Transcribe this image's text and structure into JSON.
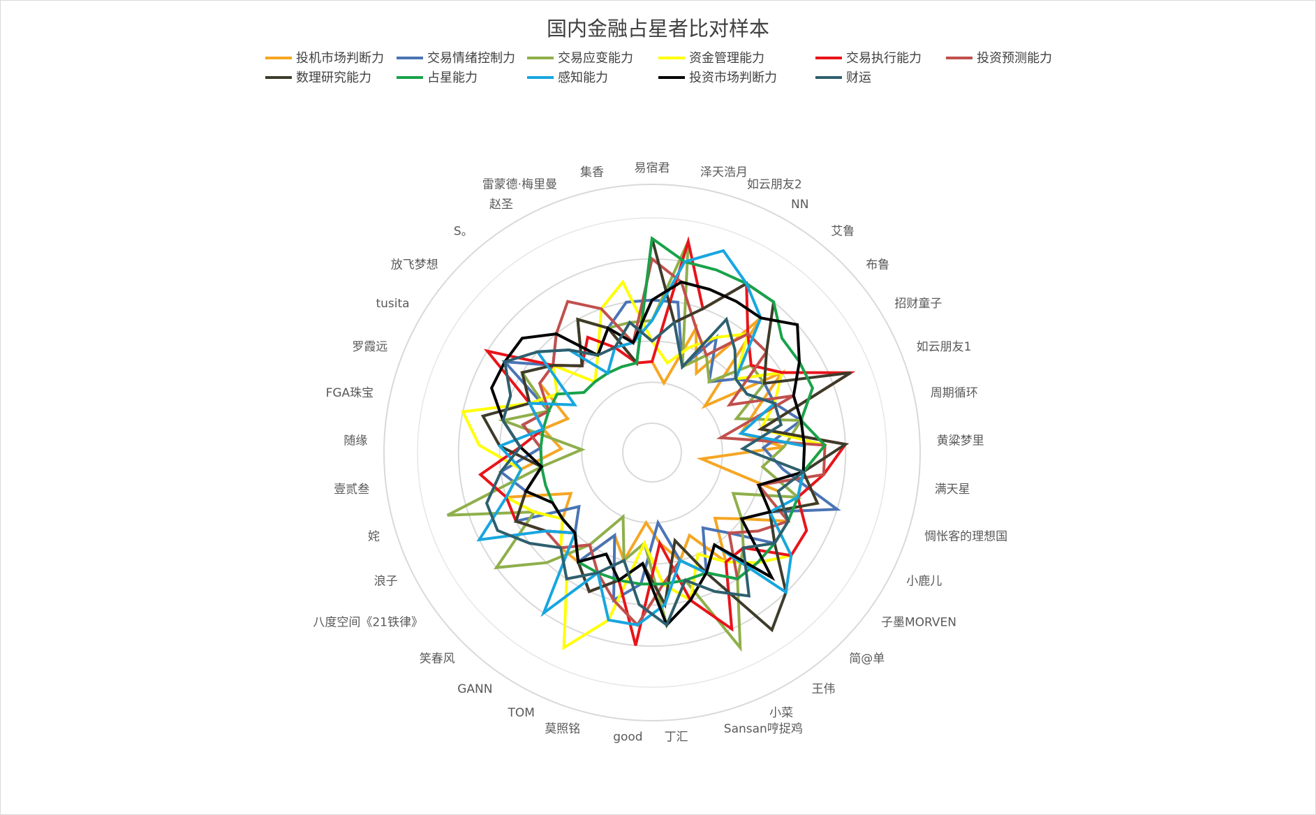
{
  "chart_data": {
    "type": "radar",
    "title": "国内金融占星者比对样本",
    "legend_position": "top",
    "rlim": [
      0,
      10
    ],
    "grid": true,
    "categories": [
      "易宿君",
      "泽天浩月",
      "如云朋友2",
      "NN",
      "艾鲁",
      "布鲁",
      "招财童子",
      "如云朋友1",
      "周期循环",
      "黄粱梦里",
      "满天星",
      "惆怅客的理想国",
      "小鹿儿",
      "子墨MORVEN",
      "简@单",
      "王伟",
      "小菜",
      "Sansan哼捉鸡",
      "丁汇",
      "good",
      "莫照铭",
      "TOM",
      "GANN",
      "笑春风",
      "八度空间《21铁律》",
      "浪子",
      "姹",
      "壹贰叁",
      "随缘",
      "FGA珠宝",
      "罗霞远",
      "tusita",
      "放飞梦想",
      "S。",
      "赵圣",
      "雷蒙德·梅里曼",
      "集香"
    ],
    "series": [
      {
        "name": "投机市场判断力",
        "color": "#f5a623",
        "values": [
          3,
          2,
          5,
          3,
          7,
          2,
          6,
          4,
          3,
          5,
          1,
          5,
          6,
          4,
          3,
          5,
          3,
          4,
          3,
          2,
          4,
          3,
          5,
          5,
          4,
          3,
          6,
          5,
          3,
          4,
          3,
          5,
          5,
          4,
          6,
          5,
          3
        ]
      },
      {
        "name": "交易情绪控制力",
        "color": "#4a74b5",
        "values": [
          6,
          6,
          3,
          5,
          3,
          4,
          5,
          5,
          6,
          4,
          5,
          8,
          5,
          6,
          4,
          3,
          5,
          4,
          2,
          5,
          6,
          3,
          5,
          4,
          3,
          6,
          5,
          6,
          4,
          5,
          4,
          7,
          5,
          6,
          4,
          5,
          6
        ]
      },
      {
        "name": "交易应变能力",
        "color": "#8faf4b",
        "values": [
          5,
          9,
          3,
          4,
          3,
          5,
          5,
          3,
          6,
          5,
          4,
          6,
          3,
          4,
          5,
          6,
          9,
          5,
          7,
          3,
          4,
          2,
          4,
          6,
          8,
          5,
          9,
          4,
          2,
          6,
          4,
          6,
          5,
          4,
          6,
          5,
          5
        ]
      },
      {
        "name": "资金管理能力",
        "color": "#ffff00",
        "values": [
          4,
          3,
          4,
          5,
          6,
          4,
          6,
          5,
          4,
          7,
          6,
          7,
          5,
          7,
          6,
          5,
          4,
          6,
          5,
          3,
          7,
          9,
          6,
          5,
          4,
          5,
          6,
          5,
          7,
          8,
          5,
          4,
          5,
          3,
          4,
          6,
          7
        ]
      },
      {
        "name": "交易执行能力",
        "color": "#e8141a",
        "values": [
          3,
          9,
          6,
          8,
          6,
          5,
          6,
          9,
          4,
          8,
          7,
          6,
          7,
          7,
          5,
          5,
          8,
          6,
          3,
          8,
          5,
          6,
          5,
          4,
          5,
          6,
          6,
          7,
          5,
          4,
          5,
          8,
          5,
          4,
          5,
          4,
          3
        ]
      },
      {
        "name": "投资预测能力",
        "color": "#c0504d",
        "values": [
          8,
          7,
          5,
          4,
          6,
          6,
          3,
          6,
          2,
          7,
          7,
          4,
          6,
          5,
          4,
          6,
          5,
          4,
          5,
          7,
          6,
          5,
          4,
          5,
          5,
          6,
          5,
          4,
          4,
          5,
          4,
          5,
          5,
          6,
          7,
          6,
          4
        ]
      },
      {
        "name": "数理研究能力",
        "color": "#3d3b2a",
        "values": [
          9,
          5,
          6,
          8,
          8,
          6,
          5,
          9,
          4,
          8,
          6,
          7,
          5,
          6,
          8,
          9,
          5,
          3,
          6,
          4,
          5,
          6,
          5,
          4,
          5,
          6,
          5,
          4,
          6,
          7,
          5,
          6,
          5,
          4,
          6,
          5,
          3
        ]
      },
      {
        "name": "占星能力",
        "color": "#19a24a",
        "values": [
          9,
          8,
          8,
          8,
          8,
          7,
          7,
          7,
          6,
          7,
          6,
          6,
          6,
          6,
          6,
          6,
          5,
          5,
          5,
          5,
          5,
          5,
          5,
          4,
          4,
          4,
          4,
          4,
          4,
          4,
          4,
          4,
          3,
          3,
          3,
          3,
          3
        ]
      },
      {
        "name": "感知能力",
        "color": "#17a6df",
        "values": [
          5,
          8,
          9,
          8,
          7,
          4,
          4,
          5,
          3,
          6,
          6,
          6,
          5,
          7,
          8,
          4,
          5,
          4,
          6,
          7,
          7,
          5,
          8,
          4,
          5,
          8,
          6,
          5,
          6,
          4,
          5,
          3,
          6,
          5,
          3,
          4,
          4
        ]
      },
      {
        "name": "投资市场判断力",
        "color": "#000000",
        "values": [
          6,
          7,
          7,
          7,
          7,
          8,
          7,
          6,
          6,
          6,
          6,
          4,
          5,
          4,
          7,
          4,
          5,
          6,
          7,
          4,
          5,
          4,
          5,
          4,
          4,
          4,
          5,
          4,
          5,
          6,
          7,
          7,
          7,
          6,
          4,
          5,
          4
        ]
      },
      {
        "name": "财运",
        "color": "#2e5f6e",
        "values": [
          4,
          5,
          3,
          6,
          5,
          4,
          4,
          5,
          5,
          3,
          6,
          5,
          6,
          6,
          5,
          7,
          6,
          5,
          7,
          6,
          4,
          5,
          6,
          5,
          6,
          7,
          7,
          6,
          5,
          6,
          6,
          7,
          6,
          5,
          4,
          4,
          5
        ]
      }
    ]
  }
}
